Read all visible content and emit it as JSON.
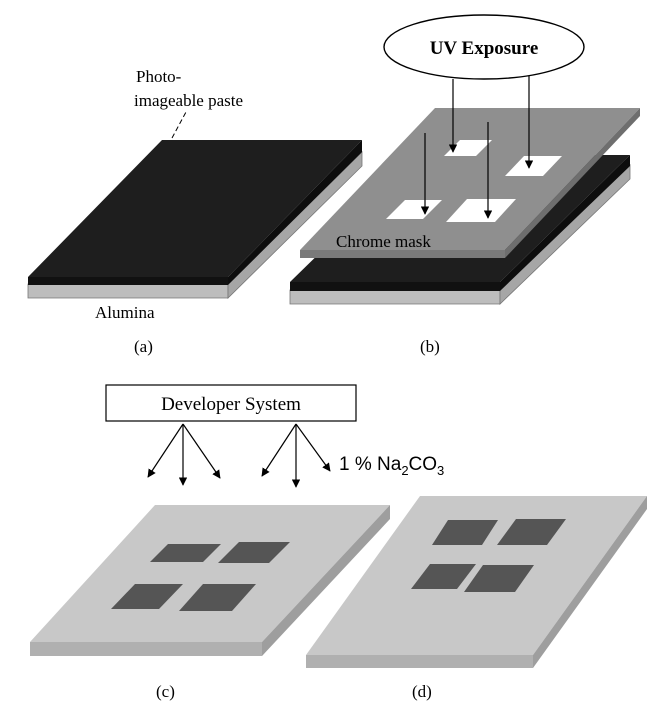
{
  "labels": {
    "paste_line1": "Photo-",
    "paste_line2": "imageable paste",
    "alumina": "Alumina",
    "uv_exposure": "UV Exposure",
    "chrome_mask": "Chrome mask",
    "developer_system": "Developer System",
    "concentration": "1 % Na",
    "subscript_2": "2",
    "co": "CO",
    "subscript_3": "3",
    "panel_a": "(a)",
    "panel_b": "(b)",
    "panel_c": "(c)",
    "panel_d": "(d)"
  },
  "colors": {
    "paste": "#1e1e1e",
    "alumina_top": "#c8c8c8",
    "alumina_side": "#a6a6a6",
    "mask": "#8f8f8f",
    "mask_side": "#7a7a7a",
    "pattern": "#555555",
    "opening": "#ffffff",
    "stroke": "#000000"
  }
}
